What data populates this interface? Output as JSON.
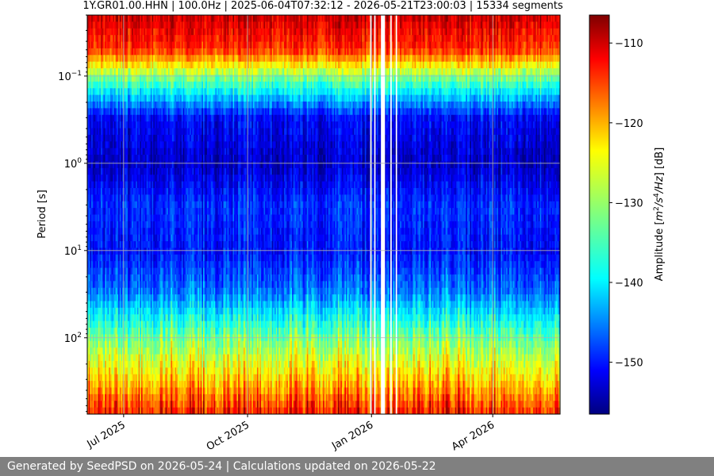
{
  "chart_data": {
    "type": "heatmap",
    "title": "1Y.GR01.00.HHN | 100.0Hz | 2025-06-04T07:32:12 - 2026-05-21T23:00:03 | 15334 segments",
    "ylabel": "Period [s]",
    "colorbar_label_parts": [
      "Amplitude [",
      "m",
      "2",
      "/s",
      "4",
      "/Hz",
      "] [dB]"
    ],
    "x_range": [
      "2025-06-04",
      "2026-05-21"
    ],
    "x_ticks": [
      {
        "date": "2025-07-01",
        "label": "Jul 2025"
      },
      {
        "date": "2025-10-01",
        "label": "Oct 2025"
      },
      {
        "date": "2026-01-01",
        "label": "Jan 2026"
      },
      {
        "date": "2026-04-01",
        "label": "Apr 2026"
      }
    ],
    "y_scale": "log",
    "y_inverted": true,
    "y_range": [
      0.02,
      750
    ],
    "y_ticks": [
      {
        "value": 0.1,
        "base": "10",
        "exp": "−1"
      },
      {
        "value": 1,
        "base": "10",
        "exp": "0"
      },
      {
        "value": 10,
        "base": "10",
        "exp": "1"
      },
      {
        "value": 100,
        "base": "10",
        "exp": "2"
      }
    ],
    "colorbar_range": [
      -156.5,
      -106.5
    ],
    "colorbar_ticks": [
      -110,
      -120,
      -130,
      -140,
      -150
    ],
    "colormap": "jet",
    "grid": true,
    "data_gaps": [
      [
        "2025-12-31",
        "2026-01-01"
      ],
      [
        "2026-01-03",
        "2026-01-04"
      ],
      [
        "2026-01-08",
        "2026-01-11"
      ],
      [
        "2026-01-15",
        "2026-01-16"
      ],
      [
        "2026-01-19",
        "2026-01-20"
      ]
    ],
    "amplitude_by_period": [
      {
        "period": 0.02,
        "db": -110
      },
      {
        "period": 0.05,
        "db": -115
      },
      {
        "period": 0.1,
        "db": -131
      },
      {
        "period": 0.3,
        "db": -150
      },
      {
        "period": 1,
        "db": -153
      },
      {
        "period": 3,
        "db": -148
      },
      {
        "period": 10,
        "db": -150
      },
      {
        "period": 30,
        "db": -145
      },
      {
        "period": 100,
        "db": -133
      },
      {
        "period": 300,
        "db": -124
      },
      {
        "period": 750,
        "db": -115
      }
    ]
  },
  "footer": {
    "text": "Generated by SeedPSD on 2026-05-24 | Calculations updated on 2026-05-22"
  }
}
